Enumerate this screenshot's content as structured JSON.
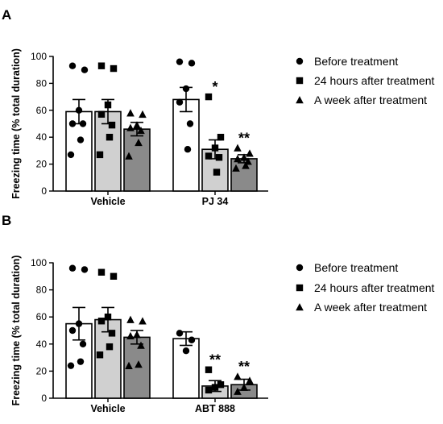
{
  "chart_data": [
    {
      "panel": "A",
      "type": "bar",
      "ylabel": "Freezing time (% total duration)",
      "ylim": [
        0,
        100
      ],
      "yticks": [
        0,
        20,
        40,
        60,
        80,
        100
      ],
      "categories": [
        "Vehicle",
        "PJ 34"
      ],
      "series": [
        {
          "name": "Before treatment",
          "marker": "circle",
          "fill": "#ffffff",
          "means": [
            59,
            68
          ],
          "sem": [
            9,
            9
          ],
          "points": [
            [
              93,
              90,
              60,
              50,
              50,
              38,
              27
            ],
            [
              96,
              95,
              76,
              66,
              50,
              31
            ]
          ],
          "significance": [
            "",
            ""
          ]
        },
        {
          "name": "24 hours after treatment",
          "marker": "square",
          "fill": "#d0d0d0",
          "means": [
            59,
            31
          ],
          "sem": [
            9,
            7
          ],
          "points": [
            [
              93,
              91,
              64,
              57,
              49,
              40,
              27
            ],
            [
              70,
              40,
              32,
              26,
              25,
              14
            ]
          ],
          "significance": [
            "",
            "*"
          ]
        },
        {
          "name": "A week after treatment",
          "marker": "triangle",
          "fill": "#8a8a8a",
          "means": [
            46,
            24
          ],
          "sem": [
            5,
            3
          ],
          "points": [
            [
              58,
              57,
              49,
              47,
              45,
              36,
              26
            ],
            [
              32,
              28,
              25,
              24,
              22,
              19,
              17
            ]
          ],
          "significance": [
            "",
            "**"
          ]
        }
      ]
    },
    {
      "panel": "B",
      "type": "bar",
      "ylabel": "Freezing time (% total duration)",
      "ylim": [
        0,
        100
      ],
      "yticks": [
        0,
        20,
        40,
        60,
        80,
        100
      ],
      "categories": [
        "Vehicle",
        "ABT 888"
      ],
      "series": [
        {
          "name": "Before treatment",
          "marker": "circle",
          "fill": "#ffffff",
          "means": [
            55,
            44
          ],
          "sem": [
            12,
            5
          ],
          "points": [
            [
              96,
              95,
              55,
              50,
              40,
              27,
              24
            ],
            [
              48,
              43,
              35
            ]
          ],
          "significance": [
            "",
            ""
          ]
        },
        {
          "name": "24 hours after treatment",
          "marker": "square",
          "fill": "#d0d0d0",
          "means": [
            58,
            9
          ],
          "sem": [
            9,
            4
          ],
          "points": [
            [
              93,
              90,
              60,
              57,
              48,
              38,
              32
            ],
            [
              21,
              10,
              8,
              6
            ]
          ],
          "significance": [
            "",
            "**"
          ]
        },
        {
          "name": "A week after treatment",
          "marker": "triangle",
          "fill": "#8a8a8a",
          "means": [
            45,
            10
          ],
          "sem": [
            5,
            4
          ],
          "points": [
            [
              58,
              57,
              47,
              46,
              39,
              25,
              24
            ],
            [
              16,
              13,
              8,
              5
            ]
          ],
          "significance": [
            "",
            "**"
          ]
        }
      ]
    }
  ]
}
